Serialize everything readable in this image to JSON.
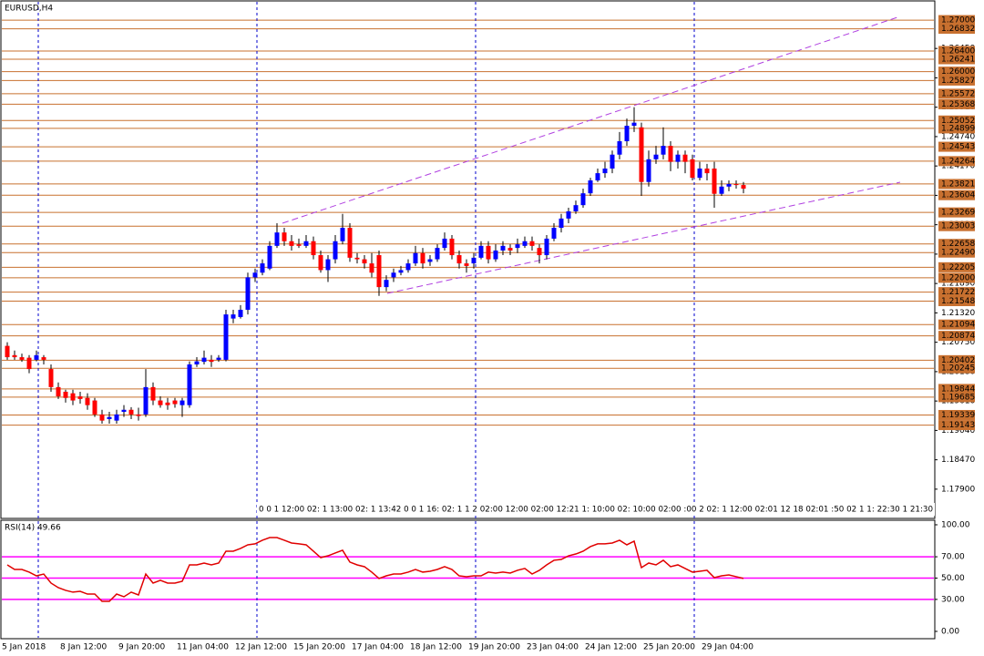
{
  "chart_data": [
    {
      "type": "candlestick",
      "title": "EURUSD,H4",
      "categories": [
        "5 Jan 2018",
        null,
        null,
        null,
        null,
        null,
        null,
        null,
        "8 Jan 12:00",
        null,
        null,
        null,
        null,
        null,
        null,
        null,
        "9 Jan 20:00",
        null,
        null,
        null,
        null,
        null,
        null,
        null,
        "11 Jan 04:00",
        null,
        null,
        null,
        null,
        null,
        null,
        null,
        "12 Jan 12:00",
        null,
        null,
        null,
        null,
        null,
        null,
        null,
        "15 Jan 20:00",
        null,
        null,
        null,
        null,
        null,
        null,
        null,
        "17 Jan 04:00",
        null,
        null,
        null,
        null,
        null,
        null,
        null,
        "18 Jan 12:00",
        null,
        null,
        null,
        null,
        null,
        null,
        null,
        "19 Jan 20:00",
        null,
        null,
        null,
        null,
        null,
        null,
        null,
        "23 Jan 04:00",
        null,
        null,
        null,
        null,
        null,
        null,
        null,
        "24 Jan 12:00",
        null,
        null,
        null,
        null,
        null,
        null,
        null,
        "25 Jan 20:00",
        null,
        null,
        null,
        null,
        null,
        null,
        null,
        "29 Jan 04:00",
        null,
        null,
        null,
        null,
        null
      ],
      "open": [
        1.2068,
        1.205,
        1.2046,
        1.2045,
        1.2041,
        1.2046,
        1.2023,
        1.1988,
        1.1979,
        1.1976,
        1.197,
        1.1967,
        1.1962,
        1.1935,
        1.1926,
        1.1923,
        1.194,
        1.1944,
        1.1935,
        1.1935,
        1.1988,
        1.1962,
        1.1958,
        1.1962,
        1.1953,
        1.1953,
        1.2032,
        1.2037,
        1.2041,
        1.2041,
        1.2041,
        1.2121,
        1.2124,
        1.2138,
        1.2201,
        1.221,
        1.2218,
        1.2262,
        1.2288,
        1.2271,
        1.2265,
        1.2262,
        1.2271,
        1.2244,
        1.2215,
        1.2236,
        1.2271,
        1.2297,
        1.2239,
        1.2236,
        1.2228,
        1.2244,
        1.2182,
        1.2201,
        1.221,
        1.2215,
        1.2228,
        1.2248,
        1.2231,
        1.2236,
        1.2258,
        1.2276,
        1.2244,
        1.2228,
        1.2228,
        1.2239,
        1.2262,
        1.2236,
        1.2253,
        1.2258,
        1.2258,
        1.2262,
        1.2271,
        1.2258,
        1.2244,
        1.2276,
        1.2297,
        1.2315,
        1.2329,
        1.2341,
        1.2364,
        1.2389,
        1.2403,
        1.2412,
        1.2439,
        1.2465,
        1.2495,
        1.2492,
        1.2386,
        1.243,
        1.2439,
        1.2456,
        1.2425,
        1.2439,
        1.243,
        1.2394,
        1.2412,
        1.2412,
        1.2363,
        1.2377,
        1.2382,
        1.238
      ],
      "high": [
        1.2075,
        1.2059,
        1.2053,
        1.205,
        1.2059,
        1.205,
        1.2032,
        1.1997,
        1.1983,
        1.1983,
        1.1979,
        1.1976,
        1.1967,
        1.1944,
        1.194,
        1.1944,
        1.1953,
        1.1949,
        1.1948,
        1.2023,
        1.1997,
        1.197,
        1.1967,
        1.1967,
        1.1967,
        1.2038,
        1.2046,
        1.2059,
        1.205,
        1.205,
        1.2138,
        1.2138,
        1.2147,
        1.221,
        1.2218,
        1.2236,
        1.2271,
        1.2306,
        1.2297,
        1.2283,
        1.2276,
        1.2283,
        1.228,
        1.2253,
        1.2244,
        1.2283,
        1.2324,
        1.2306,
        1.2248,
        1.2244,
        1.2248,
        1.2253,
        1.2205,
        1.2218,
        1.2223,
        1.2236,
        1.2262,
        1.2258,
        1.2244,
        1.2265,
        1.2288,
        1.2283,
        1.2253,
        1.2236,
        1.2248,
        1.2271,
        1.2271,
        1.2265,
        1.2271,
        1.2265,
        1.2276,
        1.228,
        1.228,
        1.2265,
        1.2283,
        1.2306,
        1.2324,
        1.2336,
        1.235,
        1.2373,
        1.2394,
        1.2412,
        1.2425,
        1.2447,
        1.2483,
        1.2509,
        1.2531,
        1.2501,
        1.2447,
        1.2456,
        1.2492,
        1.2465,
        1.2447,
        1.2447,
        1.2439,
        1.2425,
        1.2421,
        1.2425,
        1.2389,
        1.2389,
        1.2389,
        1.2386
      ],
      "low": [
        1.2041,
        1.2041,
        1.2037,
        1.2015,
        1.2038,
        1.2032,
        1.1979,
        1.1965,
        1.1958,
        1.1953,
        1.1956,
        1.1944,
        1.193,
        1.1917,
        1.1917,
        1.1917,
        1.193,
        1.1926,
        1.1923,
        1.193,
        1.1953,
        1.1948,
        1.1944,
        1.1948,
        1.193,
        1.1948,
        1.2027,
        1.2032,
        1.2027,
        1.2037,
        1.2038,
        1.2112,
        1.2121,
        1.2129,
        1.2192,
        1.2205,
        1.2215,
        1.2258,
        1.2262,
        1.2253,
        1.2258,
        1.2258,
        1.2236,
        1.221,
        1.2192,
        1.2228,
        1.2265,
        1.2231,
        1.2228,
        1.2218,
        1.2201,
        1.2165,
        1.2174,
        1.2192,
        1.2205,
        1.221,
        1.2223,
        1.2218,
        1.2223,
        1.2231,
        1.2253,
        1.2236,
        1.2218,
        1.221,
        1.2218,
        1.2236,
        1.2228,
        1.2231,
        1.2244,
        1.2244,
        1.2248,
        1.2258,
        1.2253,
        1.2228,
        1.2236,
        1.2271,
        1.2288,
        1.2306,
        1.2324,
        1.2336,
        1.2359,
        1.2386,
        1.2394,
        1.2403,
        1.243,
        1.2456,
        1.2483,
        1.2359,
        1.2377,
        1.2421,
        1.243,
        1.2407,
        1.2412,
        1.2403,
        1.2389,
        1.2389,
        1.2389,
        1.2336,
        1.2359,
        1.2368,
        1.2373,
        1.2364
      ],
      "close": [
        1.2046,
        1.2046,
        1.2041,
        1.2023,
        1.205,
        1.2041,
        1.1988,
        1.197,
        1.1967,
        1.1962,
        1.1965,
        1.1953,
        1.1935,
        1.1923,
        1.193,
        1.1935,
        1.1944,
        1.1935,
        1.1932,
        1.1988,
        1.1962,
        1.1953,
        1.1953,
        1.1955,
        1.1962,
        1.2032,
        1.2038,
        1.2045,
        1.2037,
        1.2045,
        1.2129,
        1.2129,
        1.2138,
        1.2201,
        1.221,
        1.2228,
        1.2262,
        1.2288,
        1.2271,
        1.2262,
        1.2262,
        1.2271,
        1.2244,
        1.2215,
        1.2236,
        1.2271,
        1.2297,
        1.2239,
        1.2236,
        1.2228,
        1.221,
        1.2182,
        1.2196,
        1.221,
        1.2215,
        1.2228,
        1.2248,
        1.2228,
        1.2236,
        1.2258,
        1.2276,
        1.2244,
        1.2228,
        1.2223,
        1.2239,
        1.2262,
        1.2236,
        1.2253,
        1.2262,
        1.2253,
        1.2265,
        1.2271,
        1.2262,
        1.2244,
        1.2276,
        1.2297,
        1.2315,
        1.2329,
        1.2341,
        1.2364,
        1.2389,
        1.2403,
        1.2412,
        1.2439,
        1.2465,
        1.2495,
        1.2501,
        1.2386,
        1.243,
        1.2439,
        1.2456,
        1.2425,
        1.2439,
        1.2425,
        1.2394,
        1.2412,
        1.2403,
        1.2363,
        1.2377,
        1.2382,
        1.238,
        1.2373
      ],
      "up_color": "#0000ff",
      "down_color": "#ff0000",
      "ylim": [
        1.1735,
        1.2739
      ],
      "yticks": [
        {
          "value": 1.179,
          "label": "1.17900"
        },
        {
          "value": 1.1847,
          "label": "1.18470"
        },
        {
          "value": 1.1904,
          "label": "1.19040"
        },
        {
          "value": 1.1961,
          "label": "1.19610"
        },
        {
          "value": 1.2018,
          "label": "1.20180"
        },
        {
          "value": 1.2075,
          "label": "1.20750"
        },
        {
          "value": 1.2132,
          "label": "1.21320"
        },
        {
          "value": 1.2189,
          "label": "1.21890"
        },
        {
          "value": 1.2246,
          "label": "1.22460"
        },
        {
          "value": 1.2303,
          "label": "1.23030"
        },
        {
          "value": 1.236,
          "label": "1.23600"
        },
        {
          "value": 1.2417,
          "label": "1.24170"
        },
        {
          "value": 1.2474,
          "label": "1.24740"
        },
        {
          "value": 1.2531,
          "label": "1.25310"
        },
        {
          "value": 1.2588,
          "label": "1.25880"
        },
        {
          "value": 1.2645,
          "label": "1.26450"
        }
      ],
      "levels": [
        {
          "value": 1.27,
          "label": "1.27000"
        },
        {
          "value": 1.26832,
          "label": "1.26832"
        },
        {
          "value": 1.264,
          "label": "1.26400"
        },
        {
          "value": 1.26241,
          "label": "1.26241"
        },
        {
          "value": 1.26,
          "label": "1.26000"
        },
        {
          "value": 1.25827,
          "label": "1.25827"
        },
        {
          "value": 1.25572,
          "label": "1.25572"
        },
        {
          "value": 1.25368,
          "label": "1.25368"
        },
        {
          "value": 1.25052,
          "label": "1.25052"
        },
        {
          "value": 1.24899,
          "label": "1.24899"
        },
        {
          "value": 1.24543,
          "label": "1.24543"
        },
        {
          "value": 1.24264,
          "label": "1.24264"
        },
        {
          "value": 1.23821,
          "label": "1.23821"
        },
        {
          "value": 1.23604,
          "label": "1.23604"
        },
        {
          "value": 1.23269,
          "label": "1.23269"
        },
        {
          "value": 1.23003,
          "label": "1.23003"
        },
        {
          "value": 1.22658,
          "label": "1.22658"
        },
        {
          "value": 1.2249,
          "label": "1.22490"
        },
        {
          "value": 1.22205,
          "label": "1.22205"
        },
        {
          "value": 1.22,
          "label": "1.22000"
        },
        {
          "value": 1.21722,
          "label": "1.21722"
        },
        {
          "value": 1.21548,
          "label": "1.21548"
        },
        {
          "value": 1.21094,
          "label": "1.21094"
        },
        {
          "value": 1.20874,
          "label": "1.20874"
        },
        {
          "value": 1.20402,
          "label": "1.20402"
        },
        {
          "value": 1.20245,
          "label": "1.20245"
        },
        {
          "value": 1.19844,
          "label": "1.19844"
        },
        {
          "value": 1.19685,
          "label": "1.19685"
        },
        {
          "value": 1.19339,
          "label": "1.19339"
        },
        {
          "value": 1.19143,
          "label": "1.19143"
        }
      ],
      "level_color": "#c8702f"
    },
    {
      "type": "line",
      "title": "RSI(14) 49.66",
      "values": [
        62.4,
        58.1,
        58.1,
        55.6,
        52.1,
        53.8,
        45.3,
        41.0,
        38.5,
        36.8,
        37.6,
        35.0,
        35.0,
        28.2,
        28.2,
        35.0,
        32.5,
        36.8,
        34.2,
        53.8,
        45.3,
        47.9,
        45.3,
        45.3,
        47.0,
        62.4,
        62.4,
        64.1,
        62.4,
        64.1,
        75.2,
        75.2,
        77.8,
        81.2,
        82.1,
        85.5,
        88.0,
        88.0,
        85.5,
        82.9,
        82.1,
        81.2,
        75.2,
        69.2,
        70.9,
        73.5,
        76.1,
        65.0,
        62.4,
        60.7,
        55.6,
        49.6,
        52.1,
        53.8,
        53.8,
        55.6,
        58.1,
        55.6,
        56.4,
        58.1,
        60.7,
        58.1,
        52.1,
        51.3,
        52.1,
        52.1,
        55.6,
        54.7,
        55.6,
        54.7,
        57.3,
        59.0,
        53.8,
        57.3,
        62.4,
        66.7,
        67.5,
        70.9,
        72.6,
        75.2,
        79.5,
        82.1,
        82.1,
        82.9,
        85.5,
        81.2,
        84.6,
        59.8,
        64.1,
        62.4,
        66.7,
        60.7,
        62.4,
        59.0,
        55.6,
        56.4,
        57.3,
        50.4,
        52.1,
        53.0,
        51.3,
        49.66
      ],
      "color": "#e00000",
      "ylim": [
        -6,
        103.4
      ],
      "yticks": [
        {
          "value": 100,
          "label": "100.00"
        },
        {
          "value": 70,
          "label": "70.00"
        },
        {
          "value": 50,
          "label": "50.00"
        },
        {
          "value": 30,
          "label": "30.00"
        },
        {
          "value": 0,
          "label": "0.00"
        }
      ],
      "levels": [
        30,
        50,
        70
      ],
      "level_color": "#ff00ff"
    }
  ],
  "strip_labels": "0 0 1 12:00 02: 1 13:00 02: 1 13:42 0 0 1 16: 02: 1 1 2 02:00 12:00 02:00 12:21 1: 10:00 02: 10:00 02:00 :00 2 02: 1 12:00 02:01 12 18 02:01 :50 02 1 1: 22:30 1 21:30"
}
